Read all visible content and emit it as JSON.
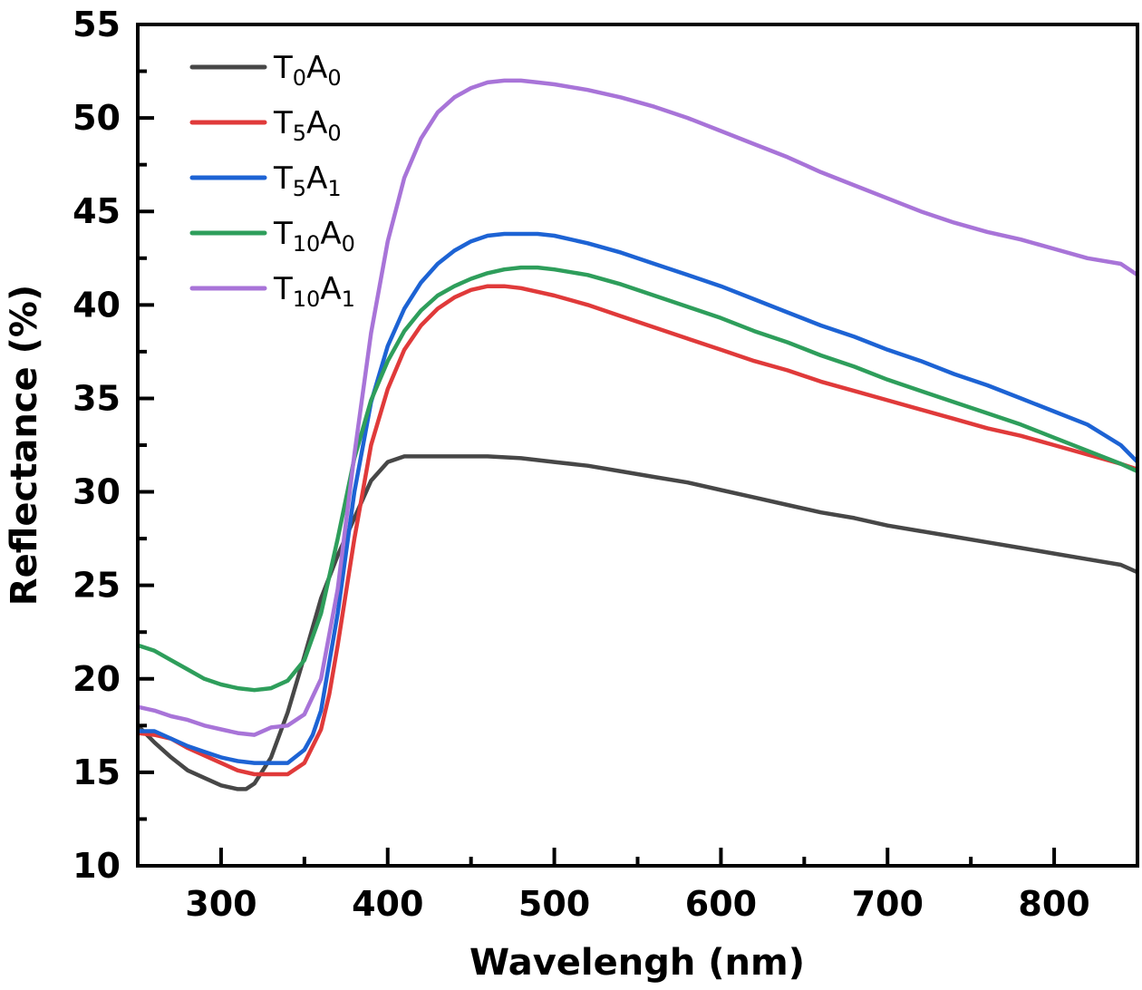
{
  "chart_data": {
    "type": "line",
    "title": "",
    "xlabel": "Wavelengh (nm)",
    "ylabel": "Reflectance (%)",
    "xlim": [
      250,
      850
    ],
    "ylim": [
      10,
      55
    ],
    "x_ticks": [
      300,
      400,
      500,
      600,
      700,
      800
    ],
    "x_minor_ticks": [
      350,
      450,
      550,
      650,
      750
    ],
    "y_ticks": [
      10,
      15,
      20,
      25,
      30,
      35,
      40,
      45,
      50,
      55
    ],
    "y_minor_ticks": [
      12.5,
      17.5,
      22.5,
      27.5,
      32.5,
      37.5,
      42.5,
      47.5,
      52.5
    ],
    "grid": false,
    "legend_position": "top-left",
    "series": [
      {
        "name": "T0A0",
        "label_parts": [
          {
            "t": "T"
          },
          {
            "t": "0",
            "sub": true
          },
          {
            "t": "A"
          },
          {
            "t": "0",
            "sub": true
          }
        ],
        "color": "#474747",
        "x": [
          250,
          260,
          270,
          280,
          290,
          300,
          310,
          315,
          320,
          330,
          340,
          350,
          360,
          370,
          380,
          390,
          400,
          410,
          420,
          440,
          460,
          480,
          500,
          520,
          540,
          560,
          580,
          600,
          620,
          640,
          660,
          680,
          700,
          720,
          740,
          760,
          780,
          800,
          820,
          840,
          850
        ],
        "y": [
          17.5,
          16.6,
          15.8,
          15.1,
          14.7,
          14.3,
          14.1,
          14.1,
          14.4,
          15.8,
          18.2,
          21.2,
          24.3,
          26.6,
          28.6,
          30.6,
          31.6,
          31.9,
          31.9,
          31.9,
          31.9,
          31.8,
          31.6,
          31.4,
          31.1,
          30.8,
          30.5,
          30.1,
          29.7,
          29.3,
          28.9,
          28.6,
          28.2,
          27.9,
          27.6,
          27.3,
          27.0,
          26.7,
          26.4,
          26.1,
          25.7
        ]
      },
      {
        "name": "T5A0",
        "label_parts": [
          {
            "t": "T"
          },
          {
            "t": "5",
            "sub": true
          },
          {
            "t": "A"
          },
          {
            "t": "0",
            "sub": true
          }
        ],
        "color": "#e03a3a",
        "x": [
          250,
          260,
          270,
          280,
          290,
          300,
          310,
          320,
          330,
          340,
          350,
          360,
          365,
          370,
          380,
          390,
          400,
          410,
          420,
          430,
          440,
          450,
          460,
          470,
          480,
          500,
          520,
          540,
          560,
          580,
          600,
          620,
          640,
          660,
          680,
          700,
          720,
          740,
          760,
          780,
          800,
          820,
          840,
          850
        ],
        "y": [
          17.1,
          17.0,
          16.8,
          16.3,
          15.9,
          15.5,
          15.1,
          14.9,
          14.9,
          14.9,
          15.5,
          17.3,
          19.2,
          21.8,
          27.5,
          32.5,
          35.5,
          37.6,
          38.9,
          39.8,
          40.4,
          40.8,
          41.0,
          41.0,
          40.9,
          40.5,
          40.0,
          39.4,
          38.8,
          38.2,
          37.6,
          37.0,
          36.5,
          35.9,
          35.4,
          34.9,
          34.4,
          33.9,
          33.4,
          33.0,
          32.5,
          32.0,
          31.5,
          31.2
        ]
      },
      {
        "name": "T5A1",
        "label_parts": [
          {
            "t": "T"
          },
          {
            "t": "5",
            "sub": true
          },
          {
            "t": "A"
          },
          {
            "t": "1",
            "sub": true
          }
        ],
        "color": "#1d63d4",
        "x": [
          250,
          260,
          270,
          280,
          290,
          300,
          310,
          320,
          330,
          340,
          350,
          355,
          360,
          370,
          380,
          390,
          400,
          410,
          420,
          430,
          440,
          450,
          460,
          470,
          480,
          490,
          500,
          520,
          540,
          560,
          580,
          600,
          620,
          640,
          660,
          680,
          700,
          720,
          740,
          760,
          780,
          800,
          820,
          840,
          850
        ],
        "y": [
          17.2,
          17.2,
          16.8,
          16.4,
          16.1,
          15.8,
          15.6,
          15.5,
          15.5,
          15.5,
          16.2,
          17.0,
          18.3,
          23.5,
          30.0,
          34.8,
          37.8,
          39.8,
          41.2,
          42.2,
          42.9,
          43.4,
          43.7,
          43.8,
          43.8,
          43.8,
          43.7,
          43.3,
          42.8,
          42.2,
          41.6,
          41.0,
          40.3,
          39.6,
          38.9,
          38.3,
          37.6,
          37.0,
          36.3,
          35.7,
          35.0,
          34.3,
          33.6,
          32.5,
          31.6
        ]
      },
      {
        "name": "T10A0",
        "label_parts": [
          {
            "t": "T"
          },
          {
            "t": "10",
            "sub": true
          },
          {
            "t": "A"
          },
          {
            "t": "0",
            "sub": true
          }
        ],
        "color": "#2e9e5b",
        "x": [
          250,
          260,
          270,
          280,
          290,
          300,
          310,
          320,
          330,
          340,
          350,
          360,
          370,
          380,
          390,
          400,
          410,
          420,
          430,
          440,
          450,
          460,
          470,
          480,
          490,
          500,
          520,
          540,
          560,
          580,
          600,
          620,
          640,
          660,
          680,
          700,
          720,
          740,
          760,
          780,
          800,
          820,
          840,
          850
        ],
        "y": [
          21.8,
          21.5,
          21.0,
          20.5,
          20.0,
          19.7,
          19.5,
          19.4,
          19.5,
          19.9,
          21.0,
          23.5,
          27.5,
          31.8,
          34.9,
          37.0,
          38.6,
          39.7,
          40.5,
          41.0,
          41.4,
          41.7,
          41.9,
          42.0,
          42.0,
          41.9,
          41.6,
          41.1,
          40.5,
          39.9,
          39.3,
          38.6,
          38.0,
          37.3,
          36.7,
          36.0,
          35.4,
          34.8,
          34.2,
          33.6,
          32.9,
          32.2,
          31.5,
          31.1
        ]
      },
      {
        "name": "T10A1",
        "label_parts": [
          {
            "t": "T"
          },
          {
            "t": "10",
            "sub": true
          },
          {
            "t": "A"
          },
          {
            "t": "1",
            "sub": true
          }
        ],
        "color": "#a874d8",
        "x": [
          250,
          260,
          270,
          280,
          290,
          300,
          310,
          320,
          330,
          340,
          350,
          360,
          370,
          380,
          390,
          400,
          410,
          420,
          430,
          440,
          450,
          460,
          470,
          480,
          490,
          500,
          520,
          540,
          560,
          580,
          600,
          620,
          640,
          660,
          680,
          700,
          720,
          740,
          760,
          780,
          800,
          820,
          840,
          850
        ],
        "y": [
          18.5,
          18.3,
          18.0,
          17.8,
          17.5,
          17.3,
          17.1,
          17.0,
          17.4,
          17.5,
          18.1,
          20.0,
          24.8,
          32.0,
          38.5,
          43.4,
          46.8,
          48.9,
          50.3,
          51.1,
          51.6,
          51.9,
          52.0,
          52.0,
          51.9,
          51.8,
          51.5,
          51.1,
          50.6,
          50.0,
          49.3,
          48.6,
          47.9,
          47.1,
          46.4,
          45.7,
          45.0,
          44.4,
          43.9,
          43.5,
          43.0,
          42.5,
          42.2,
          41.6
        ]
      }
    ]
  }
}
